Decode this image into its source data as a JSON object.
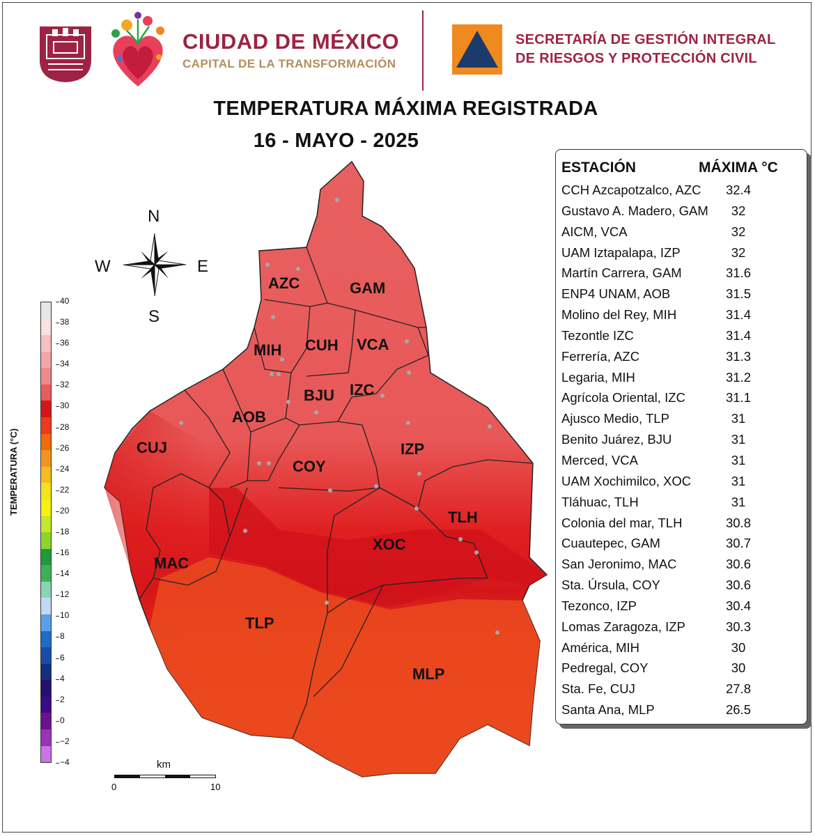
{
  "header": {
    "city_name": "CIUDAD DE MÉXICO",
    "city_tagline": "CAPITAL DE LA TRANSFORMACIÓN",
    "agency_line1": "SECRETARÍA DE GESTIÓN INTEGRAL",
    "agency_line2": "DE RIESGOS Y PROTECCIÓN CIVIL",
    "brand_color": "#9e2244",
    "tagline_color": "#b38e5d",
    "pc_logo_colors": [
      "#f08a1e",
      "#1d3a6e"
    ]
  },
  "title": {
    "line1": "TEMPERATURA MÁXIMA REGISTRADA",
    "line2": "16 - MAYO - 2025"
  },
  "compass": {
    "north": "N",
    "south": "S",
    "east": "E",
    "west": "W"
  },
  "map": {
    "alcaldias": [
      "AZC",
      "GAM",
      "MIH",
      "CUH",
      "VCA",
      "BJU",
      "IZC",
      "AOB",
      "CUJ",
      "COY",
      "IZP",
      "TLH",
      "XOC",
      "MAC",
      "TLP",
      "MLP"
    ]
  },
  "colorbar": {
    "label": "TEMPERATURA (°C)",
    "ticks": [
      "40",
      "38",
      "36",
      "34",
      "32",
      "30",
      "28",
      "26",
      "24",
      "22",
      "20",
      "18",
      "16",
      "14",
      "12",
      "10",
      "8",
      "6",
      "4",
      "2",
      "0",
      "−2",
      "−4"
    ],
    "colors": [
      "#e6e6e6",
      "#fbe0e0",
      "#f6c0c0",
      "#f4a6a6",
      "#ef8a8a",
      "#e85c5c",
      "#d4161b",
      "#ec3b1d",
      "#f06a10",
      "#f3941c",
      "#f4bc1c",
      "#f5e41c",
      "#f3f30f",
      "#c4e82a",
      "#8cd52b",
      "#1f9a3c",
      "#3fb05a",
      "#8ad3b4",
      "#bfd9f3",
      "#5aa0e6",
      "#1f6cc8",
      "#1b4ca8",
      "#14307e",
      "#22126e",
      "#3a0a88",
      "#6a148c",
      "#9b33b8",
      "#c873e6"
    ]
  },
  "scale": {
    "unit": "km",
    "start": "0",
    "end": "10"
  },
  "table": {
    "col_station": "ESTACIÓN",
    "col_max": "MÁXIMA °C",
    "rows": [
      {
        "station": "CCH Azcapotzalco, AZC",
        "max": "32.4"
      },
      {
        "station": "Gustavo A. Madero, GAM",
        "max": "32"
      },
      {
        "station": "AICM, VCA",
        "max": "32"
      },
      {
        "station": "UAM Iztapalapa, IZP",
        "max": "32"
      },
      {
        "station": "Martín Carrera, GAM",
        "max": "31.6"
      },
      {
        "station": "ENP4 UNAM,  AOB",
        "max": "31.5"
      },
      {
        "station": "Molino del Rey, MIH",
        "max": "31.4"
      },
      {
        "station": "Tezontle IZC",
        "max": "31.4"
      },
      {
        "station": "Ferrería, AZC",
        "max": "31.3"
      },
      {
        "station": "Legaria, MIH",
        "max": "31.2"
      },
      {
        "station": "Agrícola Oriental, IZC",
        "max": "31.1"
      },
      {
        "station": "Ajusco Medio, TLP",
        "max": "31"
      },
      {
        "station": "Benito Juárez, BJU",
        "max": "31"
      },
      {
        "station": "Merced, VCA",
        "max": "31"
      },
      {
        "station": "UAM Xochimilco, XOC",
        "max": "31"
      },
      {
        "station": "Tláhuac, TLH",
        "max": "31"
      },
      {
        "station": "Colonia del mar, TLH",
        "max": "30.8"
      },
      {
        "station": "Cuautepec, GAM",
        "max": "30.7"
      },
      {
        "station": "San Jeronimo, MAC",
        "max": "30.6"
      },
      {
        "station": "Sta. Úrsula, COY",
        "max": "30.6"
      },
      {
        "station": "Tezonco, IZP",
        "max": "30.4"
      },
      {
        "station": "Lomas Zaragoza, IZP",
        "max": "30.3"
      },
      {
        "station": "América, MIH",
        "max": "30"
      },
      {
        "station": "Pedregal, COY",
        "max": "30"
      },
      {
        "station": "Sta. Fe, CUJ",
        "max": "27.8"
      },
      {
        "station": "Santa Ana, MLP",
        "max": "26.5"
      }
    ]
  }
}
